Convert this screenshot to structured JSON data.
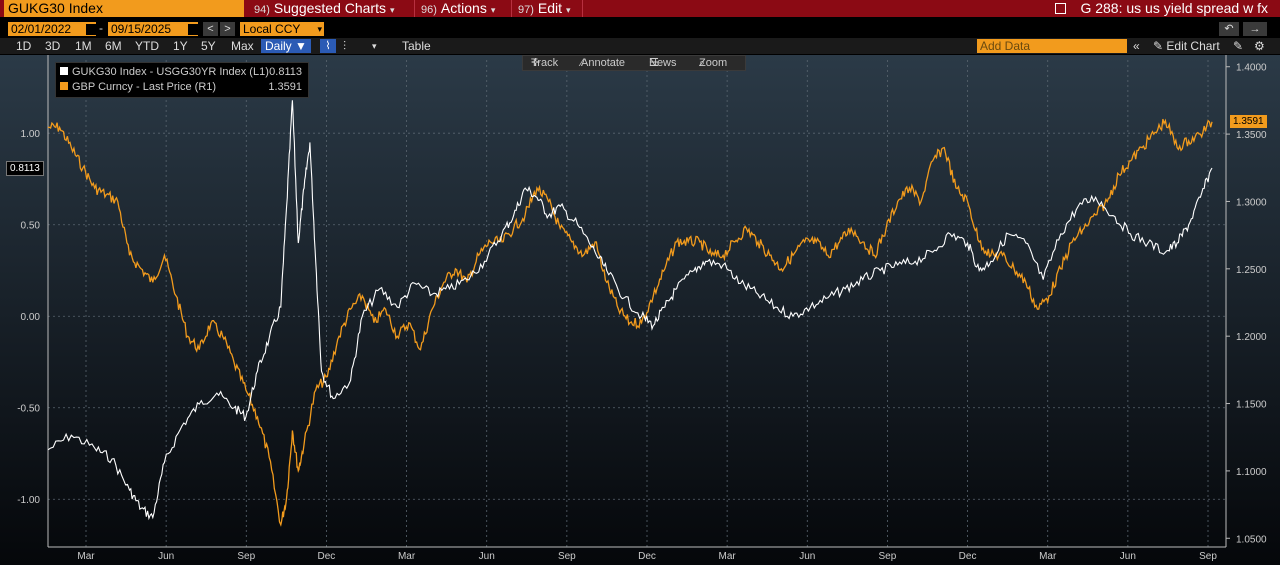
{
  "topbar": {
    "ticker": "GUKG30 Index",
    "menus": [
      {
        "num": "94)",
        "label": "Suggested Charts"
      },
      {
        "num": "96)",
        "label": "Actions"
      },
      {
        "num": "97)",
        "label": "Edit"
      }
    ],
    "title": "G 288: us us yield spread w fx"
  },
  "controls": {
    "start_date": "02/01/2022",
    "end_date": "09/15/2025",
    "date_sep": "-",
    "currency": "Local CCY",
    "nav_prev": "<",
    "nav_next": ">",
    "periods": [
      "1D",
      "3D",
      "1M",
      "6M",
      "YTD",
      "1Y",
      "5Y",
      "Max"
    ],
    "frequency": "Daily ▼",
    "table_label": "Table",
    "add_data_placeholder": "Add Data",
    "edit_chart": "Edit Chart"
  },
  "legend": {
    "items": [
      {
        "label": "GUKG30 Index - USGG30YR Index (L1)",
        "value": "0.8113",
        "color": "#ffffff"
      },
      {
        "label": "GBP Curncy - Last Price (R1)",
        "value": "1.3591",
        "color": "#f29b1d"
      }
    ]
  },
  "chart_toolbar": [
    "Track",
    "Annotate",
    "News",
    "Zoom"
  ],
  "chart_data": {
    "type": "line",
    "title": "G 288: us us yield spread w fx",
    "x_range": [
      "2022-02-01",
      "2025-09-15"
    ],
    "x_tick_labels": [
      "Mar",
      "Jun",
      "Sep",
      "Dec",
      "Mar",
      "Jun",
      "Sep",
      "Dec",
      "Mar",
      "Jun",
      "Sep",
      "Dec",
      "Mar",
      "Jun",
      "Sep"
    ],
    "left_axis": {
      "ticks": [
        "1.00",
        "0.50",
        "0.00",
        "-0.50",
        "-1.00"
      ],
      "range": [
        -1.25,
        1.4
      ],
      "last_value_tag": "0.8113"
    },
    "right_axis": {
      "ticks": [
        "1.4000",
        "1.3500",
        "1.3000",
        "1.2500",
        "1.2000",
        "1.1500",
        "1.1000",
        "1.0500"
      ],
      "range": [
        1.045,
        1.405
      ],
      "last_value_tag": "1.3591"
    },
    "series": [
      {
        "name": "GUKG30 Index - USGG30YR Index (L1)",
        "axis": "left",
        "color": "#ffffff",
        "points": [
          [
            0,
            -0.73
          ],
          [
            0.02,
            -0.65
          ],
          [
            0.04,
            -0.72
          ],
          [
            0.055,
            -0.78
          ],
          [
            0.07,
            -0.95
          ],
          [
            0.08,
            -1.05
          ],
          [
            0.09,
            -1.1
          ],
          [
            0.1,
            -0.8
          ],
          [
            0.115,
            -0.6
          ],
          [
            0.13,
            -0.48
          ],
          [
            0.145,
            -0.42
          ],
          [
            0.16,
            -0.5
          ],
          [
            0.17,
            -0.55
          ],
          [
            0.18,
            -0.3
          ],
          [
            0.19,
            -0.12
          ],
          [
            0.2,
            0.05
          ],
          [
            0.205,
            0.6
          ],
          [
            0.21,
            1.18
          ],
          [
            0.215,
            0.4
          ],
          [
            0.22,
            0.7
          ],
          [
            0.225,
            0.95
          ],
          [
            0.23,
            0.3
          ],
          [
            0.235,
            -0.3
          ],
          [
            0.245,
            -0.45
          ],
          [
            0.26,
            -0.35
          ],
          [
            0.27,
            0.0
          ],
          [
            0.285,
            0.15
          ],
          [
            0.3,
            0.05
          ],
          [
            0.315,
            0.18
          ],
          [
            0.33,
            0.12
          ],
          [
            0.345,
            0.15
          ],
          [
            0.36,
            0.2
          ],
          [
            0.375,
            0.3
          ],
          [
            0.39,
            0.45
          ],
          [
            0.4,
            0.55
          ],
          [
            0.41,
            0.7
          ],
          [
            0.42,
            0.65
          ],
          [
            0.43,
            0.55
          ],
          [
            0.44,
            0.6
          ],
          [
            0.455,
            0.5
          ],
          [
            0.47,
            0.35
          ],
          [
            0.48,
            0.25
          ],
          [
            0.495,
            0.1
          ],
          [
            0.51,
            0.0
          ],
          [
            0.52,
            -0.05
          ],
          [
            0.53,
            0.05
          ],
          [
            0.54,
            0.15
          ],
          [
            0.555,
            0.25
          ],
          [
            0.565,
            0.3
          ],
          [
            0.58,
            0.28
          ],
          [
            0.595,
            0.18
          ],
          [
            0.61,
            0.12
          ],
          [
            0.625,
            0.05
          ],
          [
            0.64,
            0.0
          ],
          [
            0.655,
            0.05
          ],
          [
            0.67,
            0.1
          ],
          [
            0.685,
            0.15
          ],
          [
            0.7,
            0.2
          ],
          [
            0.715,
            0.25
          ],
          [
            0.73,
            0.28
          ],
          [
            0.745,
            0.3
          ],
          [
            0.76,
            0.35
          ],
          [
            0.775,
            0.45
          ],
          [
            0.79,
            0.4
          ],
          [
            0.8,
            0.25
          ],
          [
            0.81,
            0.3
          ],
          [
            0.825,
            0.45
          ],
          [
            0.84,
            0.4
          ],
          [
            0.855,
            0.2
          ],
          [
            0.87,
            0.45
          ],
          [
            0.885,
            0.6
          ],
          [
            0.9,
            0.65
          ],
          [
            0.915,
            0.55
          ],
          [
            0.93,
            0.45
          ],
          [
            0.945,
            0.4
          ],
          [
            0.96,
            0.35
          ],
          [
            0.97,
            0.4
          ],
          [
            0.98,
            0.5
          ],
          [
            0.99,
            0.65
          ],
          [
            1.0,
            0.81
          ]
        ]
      },
      {
        "name": "GBP Curncy - Last Price (R1)",
        "axis": "right",
        "color": "#f29b1d",
        "points": [
          [
            0,
            1.355
          ],
          [
            0.01,
            1.355
          ],
          [
            0.02,
            1.34
          ],
          [
            0.03,
            1.325
          ],
          [
            0.04,
            1.31
          ],
          [
            0.05,
            1.305
          ],
          [
            0.06,
            1.3
          ],
          [
            0.07,
            1.26
          ],
          [
            0.08,
            1.25
          ],
          [
            0.09,
            1.24
          ],
          [
            0.1,
            1.26
          ],
          [
            0.11,
            1.23
          ],
          [
            0.12,
            1.2
          ],
          [
            0.13,
            1.19
          ],
          [
            0.14,
            1.21
          ],
          [
            0.15,
            1.2
          ],
          [
            0.16,
            1.18
          ],
          [
            0.17,
            1.16
          ],
          [
            0.18,
            1.14
          ],
          [
            0.19,
            1.11
          ],
          [
            0.2,
            1.06
          ],
          [
            0.205,
            1.08
          ],
          [
            0.21,
            1.13
          ],
          [
            0.215,
            1.1
          ],
          [
            0.22,
            1.12
          ],
          [
            0.23,
            1.16
          ],
          [
            0.24,
            1.17
          ],
          [
            0.25,
            1.2
          ],
          [
            0.26,
            1.22
          ],
          [
            0.27,
            1.23
          ],
          [
            0.28,
            1.21
          ],
          [
            0.29,
            1.22
          ],
          [
            0.3,
            1.2
          ],
          [
            0.31,
            1.21
          ],
          [
            0.32,
            1.19
          ],
          [
            0.33,
            1.22
          ],
          [
            0.34,
            1.24
          ],
          [
            0.35,
            1.25
          ],
          [
            0.36,
            1.24
          ],
          [
            0.37,
            1.26
          ],
          [
            0.38,
            1.27
          ],
          [
            0.39,
            1.27
          ],
          [
            0.4,
            1.28
          ],
          [
            0.41,
            1.29
          ],
          [
            0.42,
            1.31
          ],
          [
            0.43,
            1.3
          ],
          [
            0.44,
            1.28
          ],
          [
            0.45,
            1.27
          ],
          [
            0.46,
            1.26
          ],
          [
            0.47,
            1.27
          ],
          [
            0.48,
            1.24
          ],
          [
            0.49,
            1.22
          ],
          [
            0.5,
            1.21
          ],
          [
            0.51,
            1.21
          ],
          [
            0.52,
            1.23
          ],
          [
            0.53,
            1.25
          ],
          [
            0.54,
            1.27
          ],
          [
            0.55,
            1.27
          ],
          [
            0.56,
            1.27
          ],
          [
            0.57,
            1.26
          ],
          [
            0.58,
            1.26
          ],
          [
            0.59,
            1.27
          ],
          [
            0.6,
            1.28
          ],
          [
            0.61,
            1.27
          ],
          [
            0.62,
            1.26
          ],
          [
            0.63,
            1.25
          ],
          [
            0.64,
            1.26
          ],
          [
            0.65,
            1.27
          ],
          [
            0.66,
            1.27
          ],
          [
            0.67,
            1.26
          ],
          [
            0.68,
            1.27
          ],
          [
            0.69,
            1.28
          ],
          [
            0.7,
            1.27
          ],
          [
            0.71,
            1.26
          ],
          [
            0.72,
            1.28
          ],
          [
            0.73,
            1.3
          ],
          [
            0.74,
            1.31
          ],
          [
            0.75,
            1.3
          ],
          [
            0.76,
            1.33
          ],
          [
            0.77,
            1.34
          ],
          [
            0.78,
            1.31
          ],
          [
            0.79,
            1.3
          ],
          [
            0.8,
            1.27
          ],
          [
            0.81,
            1.26
          ],
          [
            0.82,
            1.26
          ],
          [
            0.83,
            1.25
          ],
          [
            0.84,
            1.24
          ],
          [
            0.85,
            1.22
          ],
          [
            0.86,
            1.23
          ],
          [
            0.87,
            1.25
          ],
          [
            0.88,
            1.27
          ],
          [
            0.89,
            1.28
          ],
          [
            0.9,
            1.29
          ],
          [
            0.91,
            1.3
          ],
          [
            0.92,
            1.32
          ],
          [
            0.93,
            1.33
          ],
          [
            0.94,
            1.34
          ],
          [
            0.95,
            1.35
          ],
          [
            0.96,
            1.36
          ],
          [
            0.97,
            1.34
          ],
          [
            0.98,
            1.345
          ],
          [
            0.99,
            1.35
          ],
          [
            1.0,
            1.3591
          ]
        ]
      }
    ]
  }
}
